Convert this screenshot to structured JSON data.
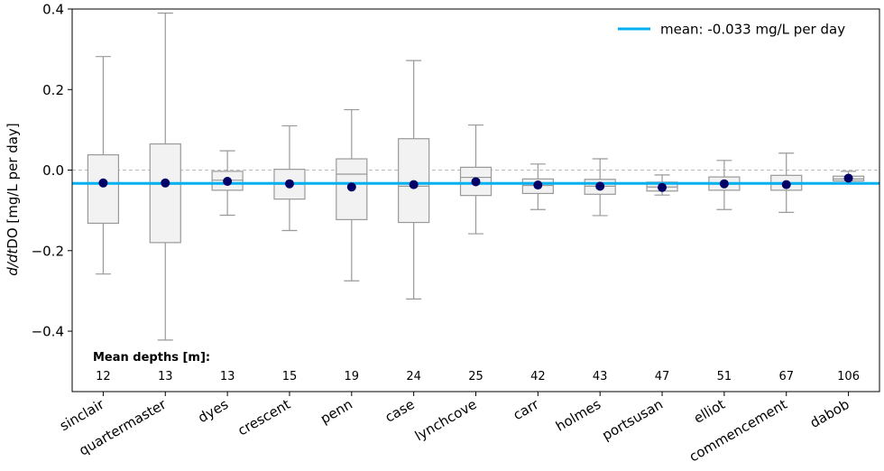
{
  "chart_data": {
    "type": "box",
    "ylabel_italic": "d/dt",
    "ylabel_rest": "DO [mg/L per day]",
    "ylim": [
      -0.55,
      0.4
    ],
    "yticks": [
      {
        "value": -0.4,
        "label": "−0.4"
      },
      {
        "value": -0.2,
        "label": "−0.2"
      },
      {
        "value": 0.0,
        "label": "0.0"
      },
      {
        "value": 0.2,
        "label": "0.2"
      },
      {
        "value": 0.4,
        "label": "0.4"
      }
    ],
    "zero_line": 0.0,
    "mean_line": {
      "value": -0.033,
      "label": "mean: -0.033 mg/L per day",
      "color": "#00b0f0"
    },
    "depth_header": "Mean depths [m]:",
    "legend_position": "upper right",
    "grid": false,
    "box_fill": "#f2f2f2",
    "box_edge": "#999999",
    "mean_marker_color": "#000066",
    "stations": [
      {
        "name": "sinclair",
        "depth": "12",
        "whisker_low": -0.258,
        "q1": -0.132,
        "median": -0.033,
        "q3": 0.038,
        "whisker_high": 0.282,
        "mean": -0.032
      },
      {
        "name": "quartermaster",
        "depth": "13",
        "whisker_low": -0.422,
        "q1": -0.18,
        "median": -0.035,
        "q3": 0.065,
        "whisker_high": 0.39,
        "mean": -0.032
      },
      {
        "name": "dyes",
        "depth": "13",
        "whisker_low": -0.112,
        "q1": -0.05,
        "median": -0.025,
        "q3": -0.003,
        "whisker_high": 0.048,
        "mean": -0.028
      },
      {
        "name": "crescent",
        "depth": "15",
        "whisker_low": -0.15,
        "q1": -0.072,
        "median": -0.035,
        "q3": 0.002,
        "whisker_high": 0.11,
        "mean": -0.034
      },
      {
        "name": "penn",
        "depth": "19",
        "whisker_low": -0.275,
        "q1": -0.123,
        "median": -0.01,
        "q3": 0.028,
        "whisker_high": 0.15,
        "mean": -0.042
      },
      {
        "name": "case",
        "depth": "24",
        "whisker_low": -0.32,
        "q1": -0.13,
        "median": -0.04,
        "q3": 0.078,
        "whisker_high": 0.272,
        "mean": -0.036
      },
      {
        "name": "lynchcove",
        "depth": "25",
        "whisker_low": -0.158,
        "q1": -0.063,
        "median": -0.018,
        "q3": 0.007,
        "whisker_high": 0.112,
        "mean": -0.029
      },
      {
        "name": "carr",
        "depth": "42",
        "whisker_low": -0.098,
        "q1": -0.058,
        "median": -0.038,
        "q3": -0.022,
        "whisker_high": 0.015,
        "mean": -0.037
      },
      {
        "name": "holmes",
        "depth": "43",
        "whisker_low": -0.113,
        "q1": -0.06,
        "median": -0.04,
        "q3": -0.023,
        "whisker_high": 0.028,
        "mean": -0.04
      },
      {
        "name": "portsusan",
        "depth": "47",
        "whisker_low": -0.062,
        "q1": -0.052,
        "median": -0.042,
        "q3": -0.03,
        "whisker_high": -0.012,
        "mean": -0.043
      },
      {
        "name": "elliot",
        "depth": "51",
        "whisker_low": -0.098,
        "q1": -0.05,
        "median": -0.035,
        "q3": -0.017,
        "whisker_high": 0.024,
        "mean": -0.034
      },
      {
        "name": "commencement",
        "depth": "67",
        "whisker_low": -0.105,
        "q1": -0.05,
        "median": -0.035,
        "q3": -0.013,
        "whisker_high": 0.042,
        "mean": -0.036
      },
      {
        "name": "dabob",
        "depth": "106",
        "whisker_low": -0.027,
        "q1": -0.027,
        "median": -0.022,
        "q3": -0.015,
        "whisker_high": -0.003,
        "mean": -0.02
      }
    ]
  }
}
